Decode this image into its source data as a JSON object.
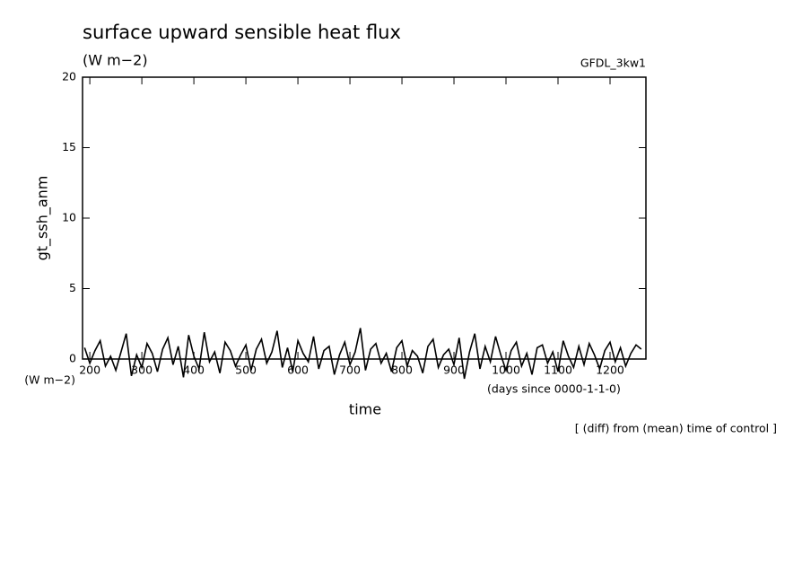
{
  "chart_data": {
    "type": "line",
    "title": "surface upward sensible heat flux",
    "subtitle": "(W m−2)",
    "model": "GFDL_3kw1",
    "y_label": "gt_ssh_anm",
    "y_unit": "(W m−2)",
    "x_label": "time",
    "x_unit": "(days since 0000-1-1-0)",
    "note": "[ (diff) from (mean) time of control ]",
    "xlim": [
      186,
      1269
    ],
    "ylim": [
      0,
      20
    ],
    "xticks": [
      200,
      300,
      400,
      500,
      600,
      700,
      800,
      900,
      1000,
      1100,
      1200
    ],
    "yticks": [
      0,
      5,
      10,
      15,
      20
    ],
    "color": "#000000",
    "x": [
      190,
      200,
      210,
      220,
      230,
      240,
      250,
      260,
      270,
      280,
      290,
      300,
      310,
      320,
      330,
      340,
      350,
      360,
      370,
      380,
      390,
      400,
      410,
      420,
      430,
      440,
      450,
      460,
      470,
      480,
      490,
      500,
      510,
      520,
      530,
      540,
      550,
      560,
      570,
      580,
      590,
      600,
      610,
      620,
      630,
      640,
      650,
      660,
      670,
      680,
      690,
      700,
      710,
      720,
      730,
      740,
      750,
      760,
      770,
      780,
      790,
      800,
      810,
      820,
      830,
      840,
      850,
      860,
      870,
      880,
      890,
      900,
      910,
      920,
      930,
      940,
      950,
      960,
      970,
      980,
      990,
      1000,
      1010,
      1020,
      1030,
      1040,
      1050,
      1060,
      1070,
      1080,
      1090,
      1100,
      1110,
      1120,
      1130,
      1140,
      1150,
      1160,
      1170,
      1180,
      1190,
      1200,
      1210,
      1220,
      1230,
      1240,
      1250,
      1260
    ],
    "values": [
      0.8,
      -0.3,
      0.6,
      1.3,
      -0.5,
      0.2,
      -0.8,
      0.5,
      1.8,
      -1.2,
      0.3,
      -0.6,
      1.1,
      0.4,
      -0.9,
      0.7,
      1.5,
      -0.4,
      0.9,
      -1.3,
      1.7,
      0.2,
      -0.7,
      1.9,
      -0.2,
      0.5,
      -1.0,
      1.2,
      0.6,
      -0.5,
      0.3,
      1.0,
      -0.8,
      0.7,
      1.4,
      -0.3,
      0.5,
      2.0,
      -0.6,
      0.8,
      -0.9,
      1.3,
      0.4,
      -0.2,
      1.6,
      -0.7,
      0.6,
      0.9,
      -1.1,
      0.3,
      1.2,
      -0.4,
      0.5,
      2.2,
      -0.8,
      0.7,
      1.1,
      -0.3,
      0.4,
      -0.9,
      0.8,
      1.3,
      -0.5,
      0.6,
      0.2,
      -1.0,
      0.9,
      1.4,
      -0.6,
      0.3,
      0.7,
      -0.4,
      1.5,
      -1.4,
      0.5,
      1.8,
      -0.7,
      0.9,
      -0.2,
      1.6,
      0.3,
      -0.8,
      0.6,
      1.2,
      -0.5,
      0.4,
      -1.1,
      0.8,
      1.0,
      -0.3,
      0.5,
      -0.9,
      1.3,
      0.2,
      -0.6,
      0.9,
      -0.4,
      1.1,
      0.3,
      -0.7,
      0.6,
      1.2,
      -0.2,
      0.8,
      -0.5,
      0.4,
      1.0,
      0.7
    ]
  }
}
